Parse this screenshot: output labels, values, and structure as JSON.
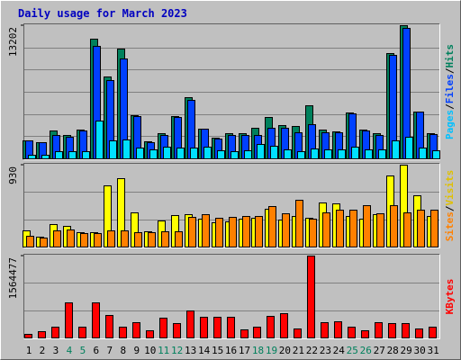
{
  "chart_data": {
    "title": "Daily usage for March 2023",
    "categories": [
      "1",
      "2",
      "3",
      "4",
      "5",
      "6",
      "7",
      "8",
      "9",
      "10",
      "11",
      "12",
      "13",
      "14",
      "15",
      "16",
      "17",
      "18",
      "19",
      "20",
      "21",
      "22",
      "23",
      "24",
      "25",
      "26",
      "27",
      "28",
      "29",
      "30",
      "31"
    ],
    "category_colors": [
      "#000000",
      "#000000",
      "#000000",
      "#00805c",
      "#00805c",
      "#000000",
      "#000000",
      "#000000",
      "#000000",
      "#000000",
      "#00805c",
      "#00805c",
      "#000000",
      "#000000",
      "#000000",
      "#000000",
      "#000000",
      "#00805c",
      "#00805c",
      "#000000",
      "#000000",
      "#000000",
      "#000000",
      "#000000",
      "#00805c",
      "#00805c",
      "#000000",
      "#000000",
      "#000000",
      "#000000",
      "#000000"
    ],
    "panels": [
      {
        "type": "bar",
        "separator": "/",
        "ylim": [
          0,
          13202
        ],
        "yticks": [
          13202
        ],
        "grid": true,
        "series": [
          {
            "name": "Hits",
            "color": "#00805c",
            "label_color": "#00805c",
            "values": [
              1796,
              1616,
              2784,
              2335,
              2874,
              11854,
              8082,
              10866,
              4310,
              1706,
              2514,
              4221,
              6106,
              2963,
              2065,
              2514,
              2514,
              3053,
              4131,
              3323,
              3233,
              5298,
              2874,
              2694,
              4580,
              2874,
              2514,
              10417,
              13202,
              4670,
              2514
            ]
          },
          {
            "name": "Files",
            "color": "#0040ff",
            "label_color": "#0040ff",
            "values": [
              1740,
              1580,
              2335,
              2155,
              2784,
              11135,
              7723,
              9878,
              4200,
              1616,
              2335,
              4100,
              5837,
              2900,
              2000,
              2335,
              2335,
              2335,
              3053,
              3053,
              2604,
              3412,
              2604,
              2604,
              4500,
              2784,
              2335,
              10237,
              12931,
              4600,
              2425
            ]
          },
          {
            "name": "Pages",
            "color": "#00e0ff",
            "label_color": "#00c0ff",
            "values": [
              359,
              359,
              718,
              718,
              718,
              3772,
              1796,
              1886,
              1078,
              898,
              1167,
              1078,
              1078,
              1167,
              808,
              718,
              808,
              1437,
              1257,
              898,
              718,
              988,
              898,
              898,
              1167,
              898,
              898,
              1796,
              2155,
              1078,
              808
            ]
          }
        ]
      },
      {
        "type": "bar",
        "separator": "/",
        "ylim": [
          0,
          930
        ],
        "yticks": [
          930
        ],
        "grid": true,
        "series": [
          {
            "name": "Visits",
            "color": "#ffff00",
            "label_color": "#e0c000",
            "values": [
              186,
              114,
              258,
              238,
              165,
              165,
              692,
              775,
              393,
              176,
              300,
              362,
              372,
              320,
              279,
              289,
              320,
              331,
              434,
              310,
              351,
              331,
              496,
              486,
              351,
              320,
              372,
              806,
              930,
              579,
              351
            ]
          },
          {
            "name": "Sites",
            "color": "#ff8000",
            "label_color": "#ff8000",
            "values": [
              124,
              103,
              186,
              196,
              155,
              155,
              186,
              186,
              165,
              165,
              176,
              176,
              341,
              372,
              331,
              341,
              351,
              351,
              455,
              382,
              527,
              320,
              393,
              424,
              424,
              475,
              382,
              475,
              393,
              424,
              424
            ]
          }
        ]
      },
      {
        "type": "bar",
        "separator": "/",
        "ylim": [
          0,
          1564477
        ],
        "yticks": [
          1564477
        ],
        "grid": true,
        "series": [
          {
            "name": "KBytes",
            "color": "#ff0000",
            "label_color": "#ff0000",
            "values": [
              68768,
              120344,
              206304,
              670488,
              206304,
              670488,
              429800,
              206304,
              292264,
              137536,
              378224,
              275072,
              515760,
              395416,
              395416,
              395416,
              154728,
              206304,
              412608,
              464184,
              171920,
              1564477,
              292264,
              309456,
              206304,
              137536,
              292264,
              275072,
              275072,
              171920,
              206304
            ]
          }
        ]
      }
    ]
  }
}
